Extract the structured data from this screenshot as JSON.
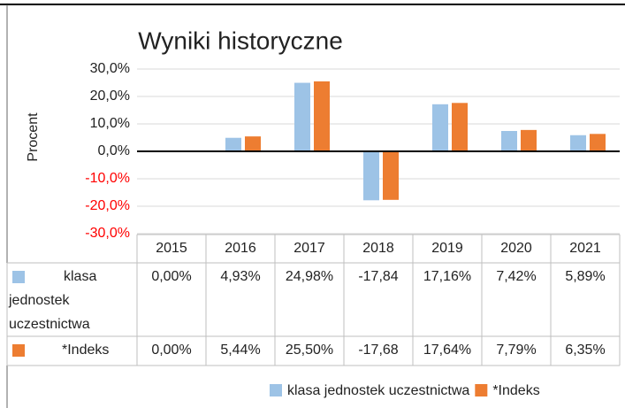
{
  "chart_data": {
    "type": "bar",
    "title": "Wyniki historyczne",
    "y_label": "Procent",
    "categories": [
      "2015",
      "2016",
      "2017",
      "2018",
      "2019",
      "2020",
      "2021"
    ],
    "series": [
      {
        "name": "klasa jednostek uczestnictwa",
        "color": "#9dc3e6",
        "values": [
          0,
          4.93,
          24.98,
          -17.84,
          17.16,
          7.42,
          5.89
        ],
        "value_labels": [
          "0,00%",
          "4,93%",
          "24,98%",
          "-17,84",
          "17,16%",
          "7,42%",
          "5,89%"
        ]
      },
      {
        "name": "*Indeks",
        "color": "#ed7d31",
        "values": [
          0,
          5.44,
          25.5,
          -17.68,
          17.64,
          7.79,
          6.35
        ],
        "value_labels": [
          "0,00%",
          "5,44%",
          "25,50%",
          "-17,68",
          "17,64%",
          "7,79%",
          "6,35%"
        ]
      }
    ],
    "ylim": [
      -30,
      30
    ],
    "yticks": [
      {
        "value": 30,
        "label": "30,0%"
      },
      {
        "value": 20,
        "label": "20,0%"
      },
      {
        "value": 10,
        "label": "10,0%"
      },
      {
        "value": 0,
        "label": "0,0%"
      },
      {
        "value": -10,
        "label": "-10,0%"
      },
      {
        "value": -20,
        "label": "-20,0%"
      },
      {
        "value": -30,
        "label": "-30,0%"
      }
    ],
    "negative_tick_color": "#ff0000",
    "grid": true,
    "data_table": true,
    "legend": "bottom"
  }
}
